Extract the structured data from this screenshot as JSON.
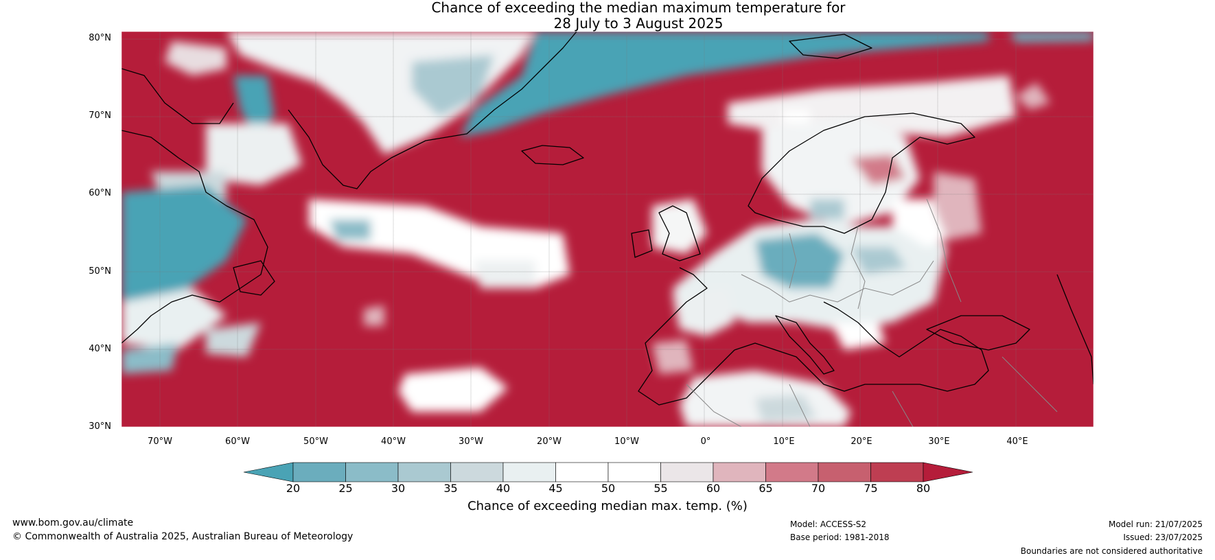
{
  "title": {
    "line1": "Chance of exceeding the median maximum temperature for",
    "line2": "28 July to 3 August 2025"
  },
  "map": {
    "lat_labels": [
      "80°N",
      "70°N",
      "60°N",
      "50°N",
      "40°N",
      "30°N"
    ],
    "lon_labels": [
      "70°W",
      "60°W",
      "50°W",
      "40°W",
      "30°W",
      "20°W",
      "10°W",
      "0°",
      "10°E",
      "20°E",
      "30°E",
      "40°E"
    ],
    "extent": {
      "lon_min": -75,
      "lon_max": 50,
      "lat_min": 30,
      "lat_max": 81
    }
  },
  "colorbar": {
    "ticks": [
      "20",
      "25",
      "30",
      "35",
      "40",
      "45",
      "50",
      "55",
      "60",
      "65",
      "70",
      "75",
      "80"
    ],
    "colors": [
      "#4aa3b5",
      "#6badbd",
      "#8bbcc8",
      "#aac9d1",
      "#ccd9dd",
      "#e9f0f1",
      "#ffffff",
      "#ffffff",
      "#ebe6e8",
      "#e0b5bd",
      "#d27a89",
      "#c7606f",
      "#be3e52",
      "#b51d3a"
    ],
    "label": "Chance of exceeding median max. temp. (%)"
  },
  "footer": {
    "website": "www.bom.gov.au/climate",
    "copyright": "© Commonwealth of Australia 2025, Australian Bureau of Meteorology",
    "model": "Model: ACCESS-S2",
    "base_period": "Base period: 1981-2018",
    "model_run": "Model run: 21/07/2025",
    "issued": "Issued: 23/07/2025",
    "disclaimer": "Boundaries are not considered authoritative"
  }
}
